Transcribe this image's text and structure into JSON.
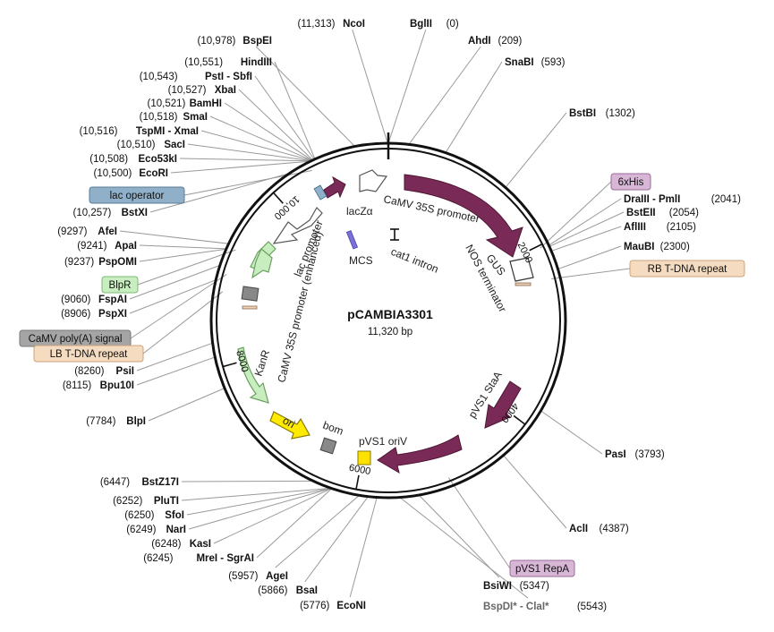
{
  "map": {
    "title": "pCAMBIA3301",
    "size_label": "11,320 bp",
    "length": 11320,
    "ticks": [
      {
        "label": "2000",
        "pos": 2000
      },
      {
        "label": "4000",
        "pos": 4000
      },
      {
        "label": "6000",
        "pos": 6000
      },
      {
        "label": "8000",
        "pos": 8000
      },
      {
        "label": "10,000",
        "pos": 10000
      }
    ]
  },
  "sites": [
    {
      "name": "NcoI",
      "pos_label": "(11,313)",
      "side": "L",
      "pos": 11313
    },
    {
      "name": "BglII",
      "pos_label": "(0)",
      "side": "R",
      "pos": 0
    },
    {
      "name": "BspEI",
      "pos_label": "(10,978)",
      "side": "L",
      "pos": 10978
    },
    {
      "name": "AhdI",
      "pos_label": "(209)",
      "side": "R",
      "pos": 209
    },
    {
      "name": "SnaBI",
      "pos_label": "(593)",
      "side": "R",
      "pos": 593
    },
    {
      "name": "HindIII",
      "pos_label": "(10,551)",
      "side": "L",
      "pos": 10551
    },
    {
      "name": "PstI - SbfI",
      "pos_label": "(10,543)",
      "side": "L",
      "pos": 10543
    },
    {
      "name": "XbaI",
      "pos_label": "(10,527)",
      "side": "L",
      "pos": 10527
    },
    {
      "name": "BamHI",
      "pos_label": "(10,521)",
      "side": "L",
      "pos": 10521
    },
    {
      "name": "SmaI",
      "pos_label": "(10,518)",
      "side": "L",
      "pos": 10518
    },
    {
      "name": "TspMI - XmaI",
      "pos_label": "(10,516)",
      "side": "L",
      "pos": 10516
    },
    {
      "name": "SacI",
      "pos_label": "(10,510)",
      "side": "L",
      "pos": 10510
    },
    {
      "name": "Eco53kI",
      "pos_label": "(10,508)",
      "side": "L",
      "pos": 10508
    },
    {
      "name": "EcoRI",
      "pos_label": "(10,500)",
      "side": "L",
      "pos": 10500
    },
    {
      "name": "BstBI",
      "pos_label": "(1302)",
      "side": "R",
      "pos": 1302
    },
    {
      "name": "BstXI",
      "pos_label": "(10,257)",
      "side": "L",
      "pos": 10257
    },
    {
      "name": "DraIII - PmlI",
      "pos_label": "(2041)",
      "side": "R",
      "pos": 2041
    },
    {
      "name": "BstEII",
      "pos_label": "(2054)",
      "side": "R",
      "pos": 2054
    },
    {
      "name": "AflIII",
      "pos_label": "(2105)",
      "side": "R",
      "pos": 2105
    },
    {
      "name": "AfeI",
      "pos_label": "(9297)",
      "side": "L",
      "pos": 9297
    },
    {
      "name": "ApaI",
      "pos_label": "(9241)",
      "side": "L",
      "pos": 9241
    },
    {
      "name": "PspOMI",
      "pos_label": "(9237)",
      "side": "L",
      "pos": 9237
    },
    {
      "name": "MauBI",
      "pos_label": "(2300)",
      "side": "R",
      "pos": 2300
    },
    {
      "name": "FspAI",
      "pos_label": "(9060)",
      "side": "L",
      "pos": 9060
    },
    {
      "name": "PspXI",
      "pos_label": "(8906)",
      "side": "L",
      "pos": 8906
    },
    {
      "name": "PsiI",
      "pos_label": "(8260)",
      "side": "L",
      "pos": 8260
    },
    {
      "name": "Bpu10I",
      "pos_label": "(8115)",
      "side": "L",
      "pos": 8115
    },
    {
      "name": "BlpI",
      "pos_label": "(7784)",
      "side": "L",
      "pos": 7784
    },
    {
      "name": "PasI",
      "pos_label": "(3793)",
      "side": "R",
      "pos": 3793
    },
    {
      "name": "BstZ17I",
      "pos_label": "(6447)",
      "side": "L",
      "pos": 6447
    },
    {
      "name": "PluTI",
      "pos_label": "(6252)",
      "side": "L",
      "pos": 6252
    },
    {
      "name": "SfoI",
      "pos_label": "(6250)",
      "side": "L",
      "pos": 6250
    },
    {
      "name": "NarI",
      "pos_label": "(6249)",
      "side": "L",
      "pos": 6249
    },
    {
      "name": "KasI",
      "pos_label": "(6248)",
      "side": "L",
      "pos": 6248
    },
    {
      "name": "MreI - SgrAI",
      "pos_label": "(6245)",
      "side": "L",
      "pos": 6245
    },
    {
      "name": "AclI",
      "pos_label": "(4387)",
      "side": "R",
      "pos": 4387
    },
    {
      "name": "AgeI",
      "pos_label": "(5957)",
      "side": "L",
      "pos": 5957
    },
    {
      "name": "BsaI",
      "pos_label": "(5866)",
      "side": "L",
      "pos": 5866
    },
    {
      "name": "EcoNI",
      "pos_label": "(5776)",
      "side": "L",
      "pos": 5776
    },
    {
      "name": "BsiWI",
      "pos_label": "(5347)",
      "side": "R",
      "pos": 5347
    },
    {
      "name": "BspDI* - ClaI*",
      "pos_label": "(5543)",
      "side": "R",
      "pos": 5543
    }
  ],
  "badges": [
    {
      "label": "lac operator",
      "fill": "#8fb0c8",
      "stroke": "#5b7d96",
      "pos": 10470
    },
    {
      "label": "6xHis",
      "fill": "#d8b6d6",
      "stroke": "#9a6a98",
      "pos": 2030
    },
    {
      "label": "RB T-DNA repeat",
      "fill": "#f5dcc0",
      "stroke": "#c9a27a",
      "pos": 2380
    },
    {
      "label": "BlpR",
      "fill": "#c8eec0",
      "stroke": "#7fb876",
      "pos": 9270
    },
    {
      "label": "CaMV poly(A) signal",
      "fill": "#a5a5a5",
      "stroke": "#777777",
      "pos": 8990
    },
    {
      "label": "LB T-DNA repeat",
      "fill": "#f5dcc0",
      "stroke": "#c9a27a",
      "pos": 8800
    },
    {
      "label": "pVS1 RepA",
      "fill": "#d8b6d6",
      "stroke": "#9a6a98",
      "pos": 5000
    }
  ],
  "features": [
    {
      "label": "CaMV 35S promoter",
      "label_pos": 440
    },
    {
      "label": "GUS",
      "label_pos": 1670
    },
    {
      "label": "NOS terminator",
      "label_pos": 2210
    },
    {
      "label": "lacZα",
      "label_pos": 10990
    },
    {
      "label": "lac promoter",
      "label_pos": 10650
    },
    {
      "label": "CaMV 35S promoter (enhanced)",
      "label_pos": 9760
    },
    {
      "label": "MCS",
      "label_pos": 10650
    },
    {
      "label": "cat1 intron",
      "label_pos": 200
    },
    {
      "label": "KanR",
      "label_pos": 8220
    },
    {
      "label": "ori",
      "label_pos": 7350
    },
    {
      "label": "bom",
      "label_pos": 6850
    },
    {
      "label": "pVS1 oriV",
      "label_pos": 5700
    },
    {
      "label": "pVS1 StaA",
      "label_pos": 4050
    }
  ]
}
